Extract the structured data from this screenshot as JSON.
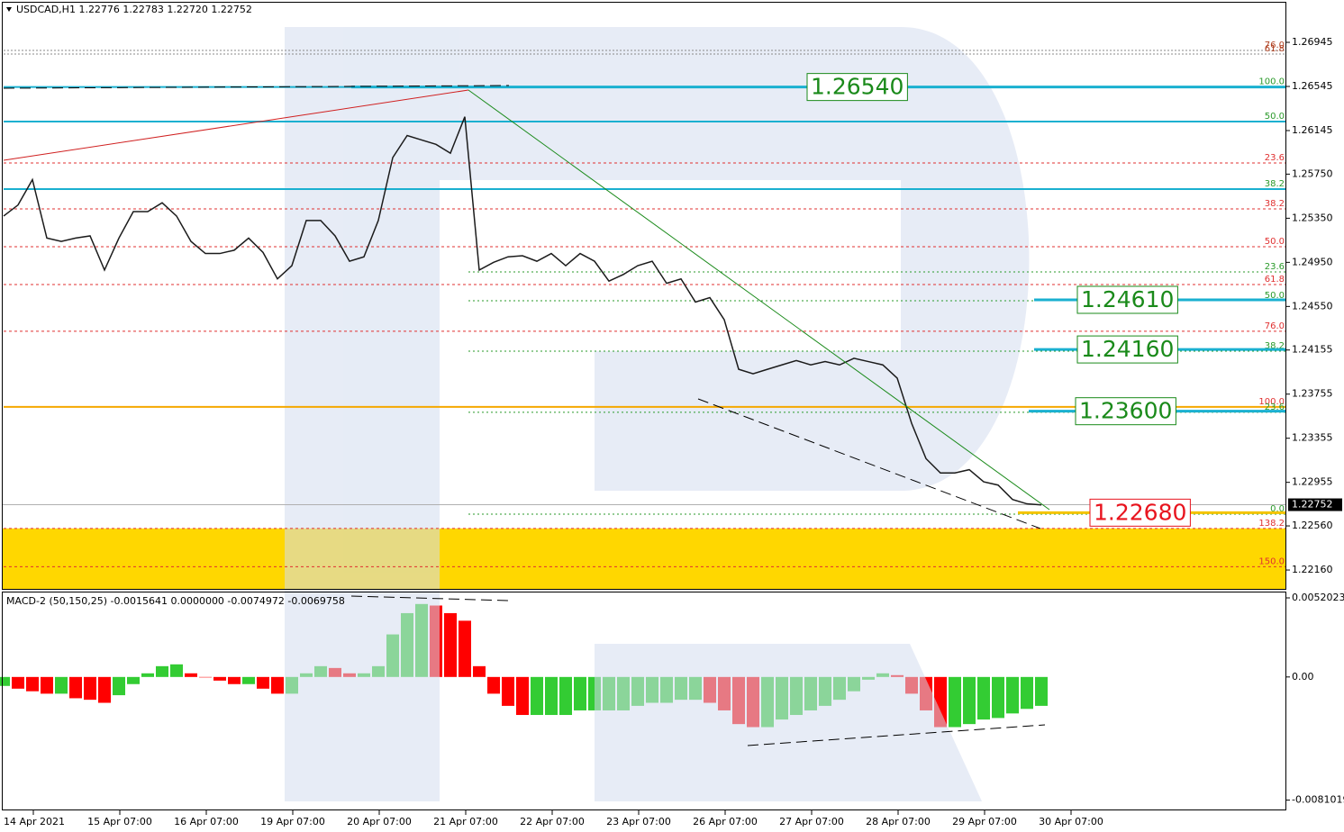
{
  "chart_data": [
    {
      "type": "line",
      "title": "USDCAD,H1 1.22776 1.22783 1.22720 1.22752",
      "color": "#1b1b1b",
      "values": [
        1.2537,
        1.2547,
        1.257,
        1.2517,
        1.2514,
        1.2517,
        1.2519,
        1.2488,
        1.2517,
        1.2541,
        1.2541,
        1.2549,
        1.2537,
        1.2514,
        1.2503,
        1.2503,
        1.2506,
        1.2517,
        1.2504,
        1.248,
        1.2492,
        1.2533,
        1.2533,
        1.2519,
        1.2496,
        1.25,
        1.2533,
        1.259,
        1.261,
        1.2606,
        1.2602,
        1.2594,
        1.2627,
        1.2488,
        1.2495,
        1.25,
        1.2501,
        1.2496,
        1.2503,
        1.2492,
        1.2503,
        1.2496,
        1.2478,
        1.2484,
        1.2492,
        1.2496,
        1.2476,
        1.248,
        1.2459,
        1.2463,
        1.2443,
        1.2398,
        1.2394,
        1.2398,
        1.2402,
        1.2406,
        1.2402,
        1.2405,
        1.2402,
        1.2408,
        1.2405,
        1.2402,
        1.239,
        1.2349,
        1.2317,
        1.2304,
        1.2304,
        1.2307,
        1.2296,
        1.2293,
        1.228,
        1.2276,
        1.2275
      ],
      "ylim": [
        1.21997,
        1.27329
      ],
      "yticks": [
        1.26945,
        1.26545,
        1.26145,
        {
          "value": 1.2575,
          "label": "1.25750"
        },
        {
          "value": 1.2535,
          "label": "1.25350"
        },
        {
          "value": 1.2495,
          "label": "1.24950"
        },
        {
          "value": 1.2455,
          "label": "1.24550"
        },
        1.24155,
        1.23755,
        1.23355,
        1.22955,
        {
          "value": 1.2256,
          "label": "1.22560"
        },
        {
          "value": 1.2216,
          "label": "1.22160"
        }
      ],
      "xlabels": [
        "14 Apr 2021",
        "15 Apr 07:00",
        "16 Apr 07:00",
        "19 Apr 07:00",
        "20 Apr 07:00",
        "21 Apr 07:00",
        "22 Apr 07:00",
        "23 Apr 07:00",
        "26 Apr 07:00",
        "27 Apr 07:00",
        "28 Apr 07:00",
        "29 Apr 07:00",
        "30 Apr 07:00"
      ],
      "zone": {
        "top": 1.22537,
        "color": "#ffd700"
      },
      "levels": [
        {
          "label": "76.0",
          "price": 1.26872,
          "kind": "gray"
        },
        {
          "label": "61.8",
          "price": 1.26839,
          "kind": "gray"
        },
        {
          "label": "100.0",
          "price": 1.2654,
          "kind": "cyan"
        },
        {
          "label": "50.0",
          "price": 1.26227,
          "kind": "cyan"
        },
        {
          "label": "23.6",
          "price": 1.25851,
          "kind": "red"
        },
        {
          "label": "38.2",
          "price": 1.25614,
          "kind": "cyan"
        },
        {
          "label": "38.2",
          "price": 1.25435,
          "kind": "red"
        },
        {
          "label": "50.0",
          "price": 1.25092,
          "kind": "red"
        },
        {
          "label": "23.6",
          "price": 1.24863,
          "kind": "green"
        },
        {
          "label": "61.8",
          "price": 1.24749,
          "kind": "red"
        },
        {
          "label": "50.0",
          "price": 1.24602,
          "kind": "green"
        },
        {
          "label": "76.0",
          "price": 1.24325,
          "kind": "red"
        },
        {
          "label": "38.2",
          "price": 1.24145,
          "kind": "green"
        },
        {
          "label": "100.0",
          "price": 1.23639,
          "kind": "orange"
        },
        {
          "label": "23.6",
          "price": 1.2359,
          "kind": "green"
        },
        {
          "label": "0.0",
          "price": 1.22667,
          "kind": "green"
        },
        {
          "label": "138.2",
          "price": 1.22537,
          "kind": "red"
        },
        {
          "label": "150.0",
          "price": 1.2219,
          "kind": "red"
        }
      ],
      "callouts": [
        {
          "label": "1.26540",
          "price": 1.2654,
          "color": "#1a8a1a",
          "line": "#1ab0d0"
        },
        {
          "label": "1.24610",
          "price": 1.2461,
          "color": "#1a8a1a",
          "line": "#1ab0d0"
        },
        {
          "label": "1.24160",
          "price": 1.2416,
          "color": "#1a8a1a",
          "line": "#1ab0d0"
        },
        {
          "label": "1.23600",
          "price": 1.236,
          "color": "#1a8a1a",
          "line": "#1ab0d0"
        },
        {
          "label": "1.22680",
          "price": 1.2268,
          "color": "#e8141e",
          "line": "#f5c400"
        }
      ],
      "last": {
        "label": "1.22752",
        "price": 1.22752
      }
    },
    {
      "type": "bar",
      "title": "MACD-2 (50,150,25) -0.0015641 0.0000000 -0.0074972 -0.0069758",
      "colors": {
        "up": "#33cc33",
        "down": "#ff0000"
      },
      "values": [
        -0.00059,
        -0.00077,
        -0.00094,
        -0.0011,
        -0.0011,
        -0.0014,
        -0.0015,
        -0.0017,
        -0.0012,
        -0.00047,
        0.00024,
        0.00071,
        0.00083,
        0.00024,
        0,
        -0.00024,
        -0.00047,
        -0.00047,
        -0.00077,
        -0.0011,
        -0.0011,
        0.00024,
        0.00071,
        0.00059,
        0.00024,
        0.00024,
        0.00071,
        0.0028,
        0.0042,
        0.0048,
        0.0047,
        0.0042,
        0.0037,
        0.00071,
        -0.0011,
        -0.0019,
        -0.0025,
        -0.0025,
        -0.0025,
        -0.0025,
        -0.0022,
        -0.0022,
        -0.0022,
        -0.0022,
        -0.0019,
        -0.0017,
        -0.0017,
        -0.0015,
        -0.0015,
        -0.0017,
        -0.0022,
        -0.0031,
        -0.0033,
        -0.0033,
        -0.0028,
        -0.0025,
        -0.0022,
        -0.0019,
        -0.0015,
        -0.00094,
        -0.00018,
        0.00024,
        0.00012,
        -0.0011,
        -0.0022,
        -0.0033,
        -0.0033,
        -0.0031,
        -0.0028,
        -0.0027,
        -0.0024,
        -0.0021,
        -0.0019
      ],
      "ylim": [
        -0.00866,
        0.00544
      ],
      "yticks": [
        0.0052023,
        {
          "value": 0,
          "label": "0.00"
        },
        -0.0081019
      ]
    }
  ]
}
